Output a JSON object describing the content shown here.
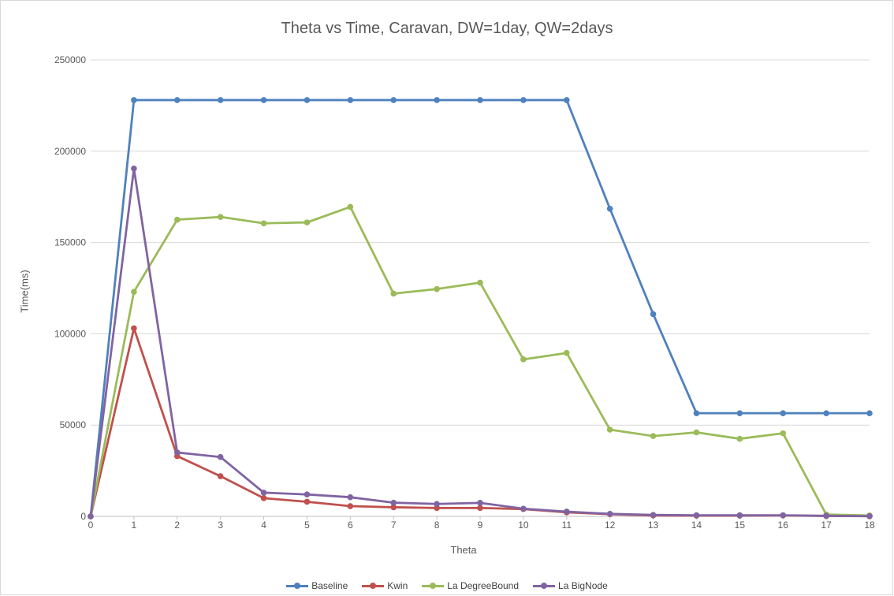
{
  "chart_data": {
    "type": "line",
    "title": "Theta vs Time, Caravan, DW=1day, QW=2days",
    "xlabel": "Theta",
    "ylabel": "Time(ms)",
    "x": [
      0,
      1,
      2,
      3,
      4,
      5,
      6,
      7,
      8,
      9,
      10,
      11,
      12,
      13,
      14,
      15,
      16,
      17,
      18
    ],
    "ylim": [
      0,
      250000
    ],
    "yticks": [
      0,
      50000,
      100000,
      150000,
      200000,
      250000
    ],
    "grid": true,
    "legend_position": "bottom",
    "series": [
      {
        "name": "Baseline",
        "color": "#4f81bd",
        "values": [
          0,
          228000,
          228000,
          228000,
          228000,
          228000,
          228000,
          228000,
          228000,
          228000,
          228000,
          228000,
          168500,
          110800,
          56500,
          56500,
          56500,
          56500,
          56500
        ]
      },
      {
        "name": "Kwin",
        "color": "#c0504d",
        "values": [
          0,
          103000,
          33000,
          22000,
          10000,
          8000,
          5600,
          5000,
          4600,
          4600,
          4000,
          2200,
          1200,
          500,
          400,
          400,
          500,
          200,
          100
        ]
      },
      {
        "name": "La DegreeBound",
        "color": "#9bbb59",
        "values": [
          0,
          123000,
          162500,
          164000,
          160500,
          161000,
          169500,
          122000,
          124500,
          128000,
          86000,
          89500,
          47500,
          44000,
          46000,
          42500,
          45500,
          1000,
          500
        ]
      },
      {
        "name": "La BigNode",
        "color": "#8064a2",
        "values": [
          0,
          190500,
          35000,
          32500,
          13000,
          12000,
          10500,
          7500,
          6800,
          7400,
          4200,
          2600,
          1400,
          800,
          600,
          600,
          600,
          300,
          100
        ]
      }
    ]
  }
}
